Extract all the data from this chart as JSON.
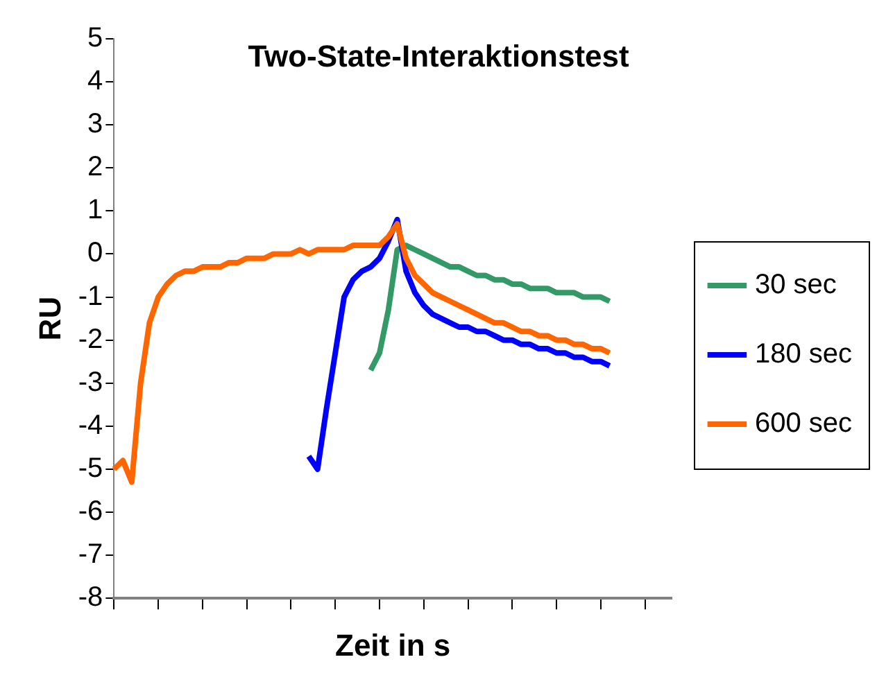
{
  "chart_data": {
    "type": "line",
    "title": "Two-State-Interaktionstest",
    "xlabel": "Zeit in s",
    "ylabel": "RU",
    "categories": [
      null,
      null,
      null,
      null,
      null,
      null,
      null,
      null,
      null,
      null,
      null,
      null,
      null,
      null,
      null,
      null,
      null,
      null,
      null,
      null,
      null,
      null,
      null,
      null,
      null,
      null,
      null,
      null,
      null,
      null,
      null,
      null,
      null,
      null,
      null,
      null,
      null,
      null,
      null,
      null,
      null,
      null,
      null,
      null,
      null,
      null,
      null,
      null,
      null,
      null,
      null,
      null,
      null,
      null,
      null,
      null,
      null,
      null,
      null,
      null,
      null,
      null,
      null,
      null
    ],
    "series": [
      {
        "name": "30 sec",
        "color": "#339966",
        "values": [
          null,
          null,
          null,
          null,
          null,
          null,
          null,
          null,
          null,
          null,
          null,
          null,
          null,
          null,
          null,
          null,
          null,
          null,
          null,
          null,
          null,
          null,
          null,
          null,
          null,
          null,
          null,
          null,
          null,
          -2.7,
          -2.3,
          -1.3,
          0.1,
          0.2,
          0.1,
          0.0,
          -0.1,
          -0.2,
          -0.3,
          -0.3,
          -0.4,
          -0.5,
          -0.5,
          -0.6,
          -0.6,
          -0.7,
          -0.7,
          -0.8,
          -0.8,
          -0.8,
          -0.9,
          -0.9,
          -0.9,
          -1.0,
          -1.0,
          -1.0,
          -1.1,
          null,
          null,
          null,
          null,
          null,
          null,
          null
        ]
      },
      {
        "name": "180 sec",
        "color": "#0000ff",
        "values": [
          null,
          null,
          null,
          null,
          null,
          null,
          null,
          null,
          null,
          null,
          null,
          null,
          null,
          null,
          null,
          null,
          null,
          null,
          null,
          null,
          null,
          null,
          -4.7,
          -5.0,
          -3.6,
          -2.3,
          -1.0,
          -0.6,
          -0.4,
          -0.3,
          -0.1,
          0.3,
          0.8,
          -0.4,
          -0.9,
          -1.2,
          -1.4,
          -1.5,
          -1.6,
          -1.7,
          -1.7,
          -1.8,
          -1.8,
          -1.9,
          -2.0,
          -2.0,
          -2.1,
          -2.1,
          -2.2,
          -2.2,
          -2.3,
          -2.3,
          -2.4,
          -2.4,
          -2.5,
          -2.5,
          -2.6,
          null,
          null,
          null,
          null,
          null,
          null,
          null
        ]
      },
      {
        "name": "600 sec",
        "color": "#ff6600",
        "values": [
          -5.0,
          -4.8,
          -5.3,
          -3.0,
          -1.6,
          -1.0,
          -0.7,
          -0.5,
          -0.4,
          -0.4,
          -0.3,
          -0.3,
          -0.3,
          -0.2,
          -0.2,
          -0.1,
          -0.1,
          -0.1,
          0,
          0,
          0,
          0.1,
          0,
          0.1,
          0.1,
          0.1,
          0.1,
          0.2,
          0.2,
          0.2,
          0.2,
          0.4,
          0.7,
          -0.1,
          -0.5,
          -0.7,
          -0.9,
          -1.0,
          -1.1,
          -1.2,
          -1.3,
          -1.4,
          -1.5,
          -1.6,
          -1.6,
          -1.7,
          -1.8,
          -1.8,
          -1.9,
          -1.9,
          -2.0,
          -2.0,
          -2.1,
          -2.1,
          -2.2,
          -2.2,
          -2.3,
          null,
          null,
          null,
          null,
          null,
          null,
          null
        ]
      }
    ],
    "ylim": [
      -8,
      5
    ],
    "yticks": [
      -8,
      -7,
      -6,
      -5,
      -4,
      -3,
      -2,
      -1,
      0,
      1,
      2,
      3,
      4,
      5
    ],
    "legend": "right",
    "marker": "none",
    "grid": false,
    "tick_labels": "y"
  }
}
